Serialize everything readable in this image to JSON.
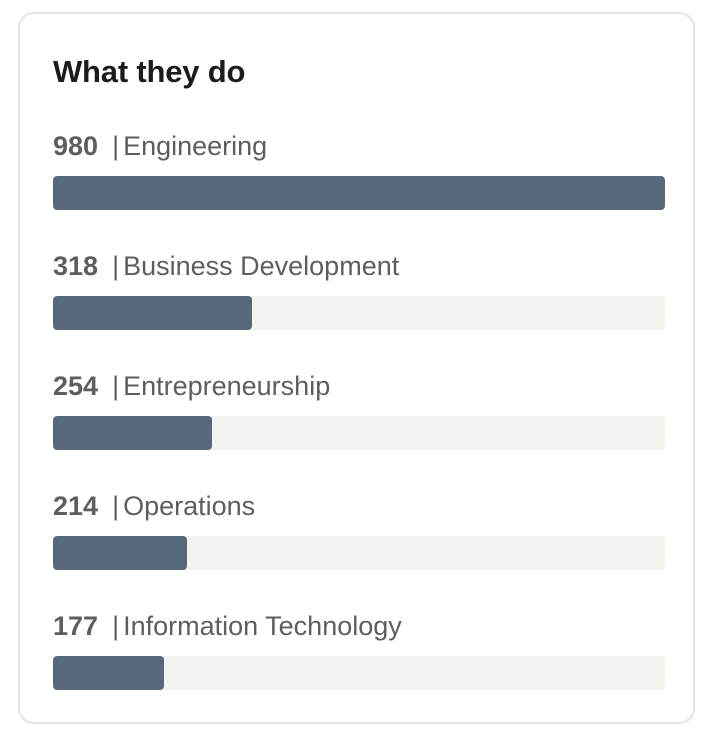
{
  "card": {
    "title": "What they do",
    "separator": "|",
    "bar_color": "#56687a",
    "track_color": "#f3f2ef",
    "rows": [
      {
        "count": "980",
        "label": "Engineering",
        "fill": 1.0
      },
      {
        "count": "318",
        "label": "Business Development",
        "fill": 0.3245
      },
      {
        "count": "254",
        "label": "Entrepreneurship",
        "fill": 0.2592
      },
      {
        "count": "214",
        "label": "Operations",
        "fill": 0.2184
      },
      {
        "count": "177",
        "label": "Information Technology",
        "fill": 0.1806
      }
    ]
  }
}
